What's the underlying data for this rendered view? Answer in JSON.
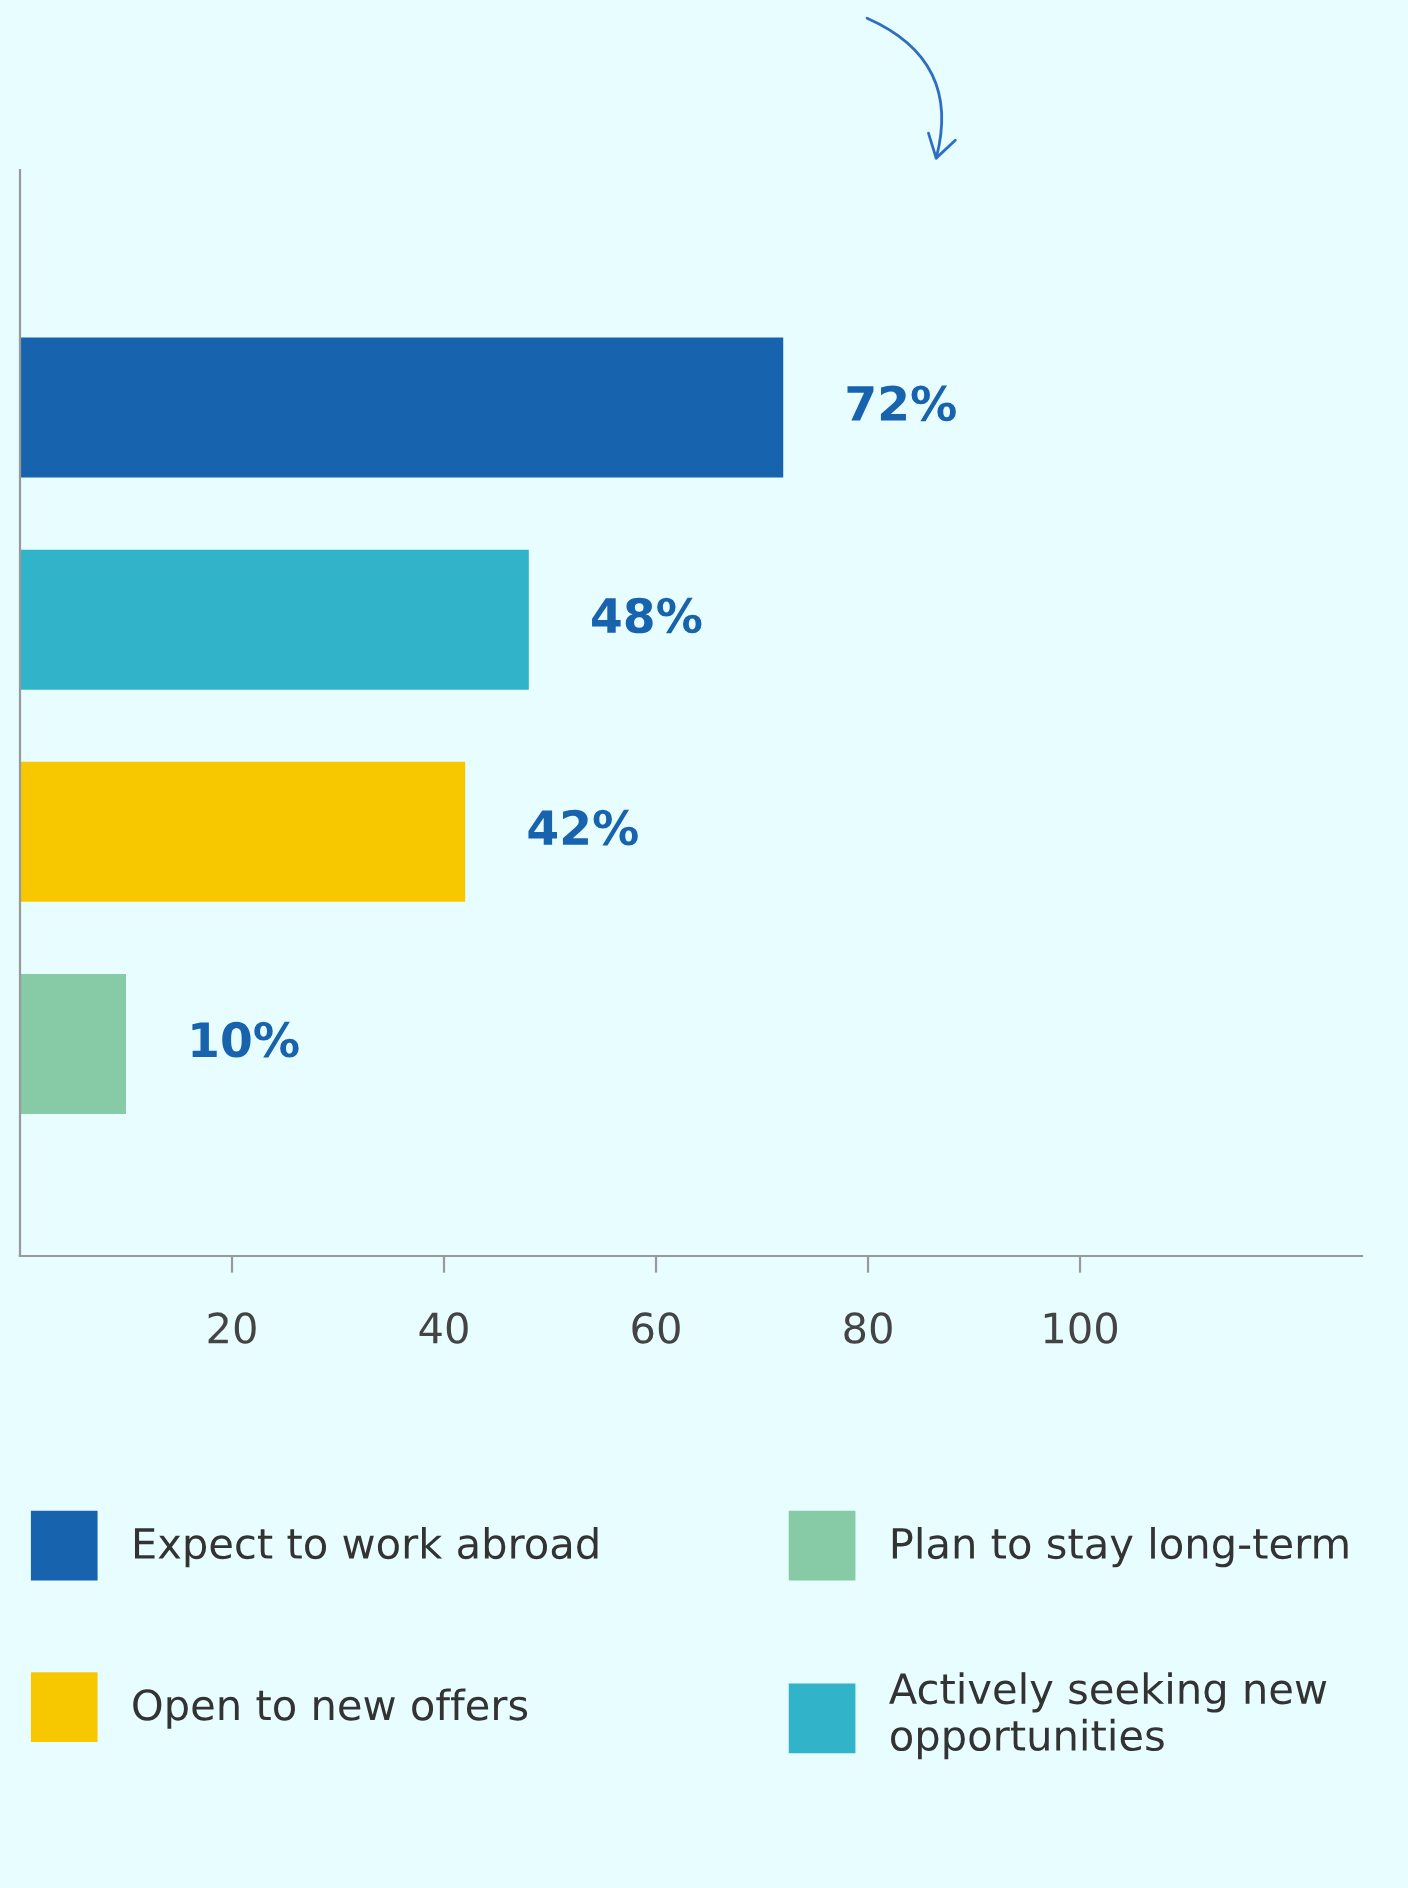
{
  "chart_data": {
    "type": "bar",
    "orientation": "horizontal",
    "categories": [
      null,
      null,
      null,
      null
    ],
    "series": [
      {
        "name": "Expect to work abroad",
        "color": "#1763ad",
        "values": [
          72,
          null,
          null,
          null
        ],
        "value_labels": [
          "72%",
          null,
          null,
          null
        ]
      },
      {
        "name": "Actively seeking new\nopportunities",
        "color": "#31b4c9",
        "values": [
          null,
          48,
          null,
          null
        ],
        "value_labels": [
          null,
          "48%",
          null,
          null
        ]
      },
      {
        "name": "Open to new offers",
        "color": "#f7c800",
        "values": [
          null,
          null,
          42,
          null
        ],
        "value_labels": [
          null,
          null,
          "42%",
          null
        ]
      },
      {
        "name": "Plan to stay long-term",
        "color": "#86cba6",
        "values": [
          null,
          null,
          null,
          10
        ],
        "value_labels": [
          null,
          null,
          null,
          "10%"
        ]
      }
    ],
    "xlim": [
      0,
      126.6
    ],
    "xticks": [
      20,
      40,
      60,
      80,
      100
    ],
    "tick_labels": "x",
    "grid": false,
    "legend": "bottom"
  }
}
